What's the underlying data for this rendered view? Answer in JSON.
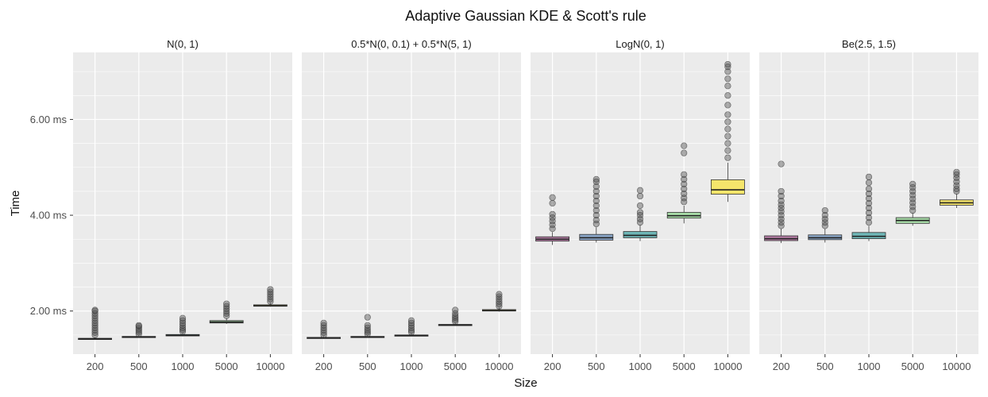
{
  "chart_data": {
    "type": "box",
    "title": "Adaptive Gaussian KDE & Scott's rule",
    "xlabel": "Size",
    "ylabel": "Time",
    "categories": [
      "200",
      "500",
      "1000",
      "5000",
      "10000"
    ],
    "ylim": [
      1.1,
      7.4
    ],
    "yticks": [
      2,
      4,
      6
    ],
    "ytick_labels": [
      "2.00 ms",
      "4.00 ms",
      "6.00 ms"
    ],
    "grid": true,
    "legend": "none",
    "fill_colors": [
      "#b07aa1",
      "#8aa6c8",
      "#6fb6b6",
      "#a8dca8",
      "#f5e56b"
    ],
    "panels": [
      {
        "label": "N(0, 1)",
        "boxes": [
          {
            "q1": 1.41,
            "median": 1.42,
            "q3": 1.43,
            "whisker_low": 1.4,
            "whisker_high": 1.45,
            "outliers": [
              1.5,
              1.55,
              1.6,
              1.65,
              1.7,
              1.75,
              1.8,
              1.85,
              1.9,
              1.95,
              2.0,
              2.02
            ]
          },
          {
            "q1": 1.45,
            "median": 1.46,
            "q3": 1.47,
            "whisker_low": 1.44,
            "whisker_high": 1.49,
            "outliers": [
              1.52,
              1.56,
              1.6,
              1.64,
              1.68,
              1.7
            ]
          },
          {
            "q1": 1.48,
            "median": 1.49,
            "q3": 1.51,
            "whisker_low": 1.47,
            "whisker_high": 1.54,
            "outliers": [
              1.57,
              1.61,
              1.65,
              1.7,
              1.75,
              1.8,
              1.85
            ]
          },
          {
            "q1": 1.75,
            "median": 1.77,
            "q3": 1.8,
            "whisker_low": 1.73,
            "whisker_high": 1.85,
            "outliers": [
              1.9,
              1.95,
              2.0,
              2.05,
              2.1,
              2.15
            ]
          },
          {
            "q1": 2.1,
            "median": 2.11,
            "q3": 2.13,
            "whisker_low": 2.09,
            "whisker_high": 2.17,
            "outliers": [
              2.2,
              2.25,
              2.3,
              2.35,
              2.4,
              2.45
            ]
          }
        ]
      },
      {
        "label": "0.5*N(0, 0.1) + 0.5*N(5, 1)",
        "boxes": [
          {
            "q1": 1.43,
            "median": 1.44,
            "q3": 1.45,
            "whisker_low": 1.42,
            "whisker_high": 1.47,
            "outliers": [
              1.5,
              1.55,
              1.6,
              1.65,
              1.7,
              1.75
            ]
          },
          {
            "q1": 1.45,
            "median": 1.46,
            "q3": 1.47,
            "whisker_low": 1.44,
            "whisker_high": 1.49,
            "outliers": [
              1.52,
              1.56,
              1.6,
              1.65,
              1.7,
              1.87
            ]
          },
          {
            "q1": 1.48,
            "median": 1.49,
            "q3": 1.5,
            "whisker_low": 1.47,
            "whisker_high": 1.53,
            "outliers": [
              1.56,
              1.6,
              1.65,
              1.7,
              1.75,
              1.8
            ]
          },
          {
            "q1": 1.7,
            "median": 1.71,
            "q3": 1.72,
            "whisker_low": 1.69,
            "whisker_high": 1.75,
            "outliers": [
              1.78,
              1.82,
              1.86,
              1.9,
              1.95,
              2.02
            ]
          },
          {
            "q1": 2.0,
            "median": 2.01,
            "q3": 2.03,
            "whisker_low": 1.99,
            "whisker_high": 2.07,
            "outliers": [
              2.1,
              2.15,
              2.2,
              2.25,
              2.3,
              2.35
            ]
          }
        ]
      },
      {
        "label": "LogN(0, 1)",
        "boxes": [
          {
            "q1": 3.46,
            "median": 3.5,
            "q3": 3.55,
            "whisker_low": 3.38,
            "whisker_high": 3.65,
            "outliers": [
              3.72,
              3.8,
              3.88,
              3.95,
              4.02,
              4.25,
              4.37
            ]
          },
          {
            "q1": 3.48,
            "median": 3.53,
            "q3": 3.6,
            "whisker_low": 3.43,
            "whisker_high": 3.75,
            "outliers": [
              3.82,
              3.9,
              4.0,
              4.1,
              4.2,
              4.3,
              4.4,
              4.5,
              4.6,
              4.7,
              4.75
            ]
          },
          {
            "q1": 3.53,
            "median": 3.58,
            "q3": 3.66,
            "whisker_low": 3.46,
            "whisker_high": 3.8,
            "outliers": [
              3.85,
              3.92,
              4.0,
              4.06,
              4.2,
              4.4,
              4.52
            ]
          },
          {
            "q1": 3.94,
            "median": 3.99,
            "q3": 4.06,
            "whisker_low": 3.83,
            "whisker_high": 4.2,
            "outliers": [
              4.28,
              4.36,
              4.45,
              4.55,
              4.65,
              4.75,
              4.85,
              5.3,
              5.45
            ]
          },
          {
            "q1": 4.44,
            "median": 4.53,
            "q3": 4.74,
            "whisker_low": 4.28,
            "whisker_high": 5.1,
            "outliers": [
              5.2,
              5.35,
              5.5,
              5.65,
              5.8,
              5.95,
              6.1,
              6.3,
              6.5,
              6.7,
              6.85,
              7.0,
              7.1,
              7.15
            ]
          }
        ]
      },
      {
        "label": "Be(2.5, 1.5)",
        "boxes": [
          {
            "q1": 3.47,
            "median": 3.51,
            "q3": 3.57,
            "whisker_low": 3.42,
            "whisker_high": 3.72,
            "outliers": [
              3.78,
              3.85,
              3.92,
              4.0,
              4.08,
              4.15,
              4.22,
              4.3,
              4.4,
              4.5,
              5.07
            ]
          },
          {
            "q1": 3.49,
            "median": 3.53,
            "q3": 3.59,
            "whisker_low": 3.43,
            "whisker_high": 3.72,
            "outliers": [
              3.78,
              3.85,
              3.92,
              4.0,
              4.1
            ]
          },
          {
            "q1": 3.51,
            "median": 3.56,
            "q3": 3.64,
            "whisker_low": 3.46,
            "whisker_high": 3.78,
            "outliers": [
              3.85,
              3.95,
              4.05,
              4.15,
              4.25,
              4.35,
              4.45,
              4.55,
              4.68,
              4.8
            ]
          },
          {
            "q1": 3.83,
            "median": 3.89,
            "q3": 3.95,
            "whisker_low": 3.78,
            "whisker_high": 4.05,
            "outliers": [
              4.1,
              4.18,
              4.26,
              4.34,
              4.42,
              4.5,
              4.58,
              4.65
            ]
          },
          {
            "q1": 4.21,
            "median": 4.26,
            "q3": 4.32,
            "whisker_low": 4.15,
            "whisker_high": 4.45,
            "outliers": [
              4.5,
              4.55,
              4.62,
              4.7,
              4.78,
              4.85,
              4.9
            ]
          }
        ]
      }
    ]
  }
}
